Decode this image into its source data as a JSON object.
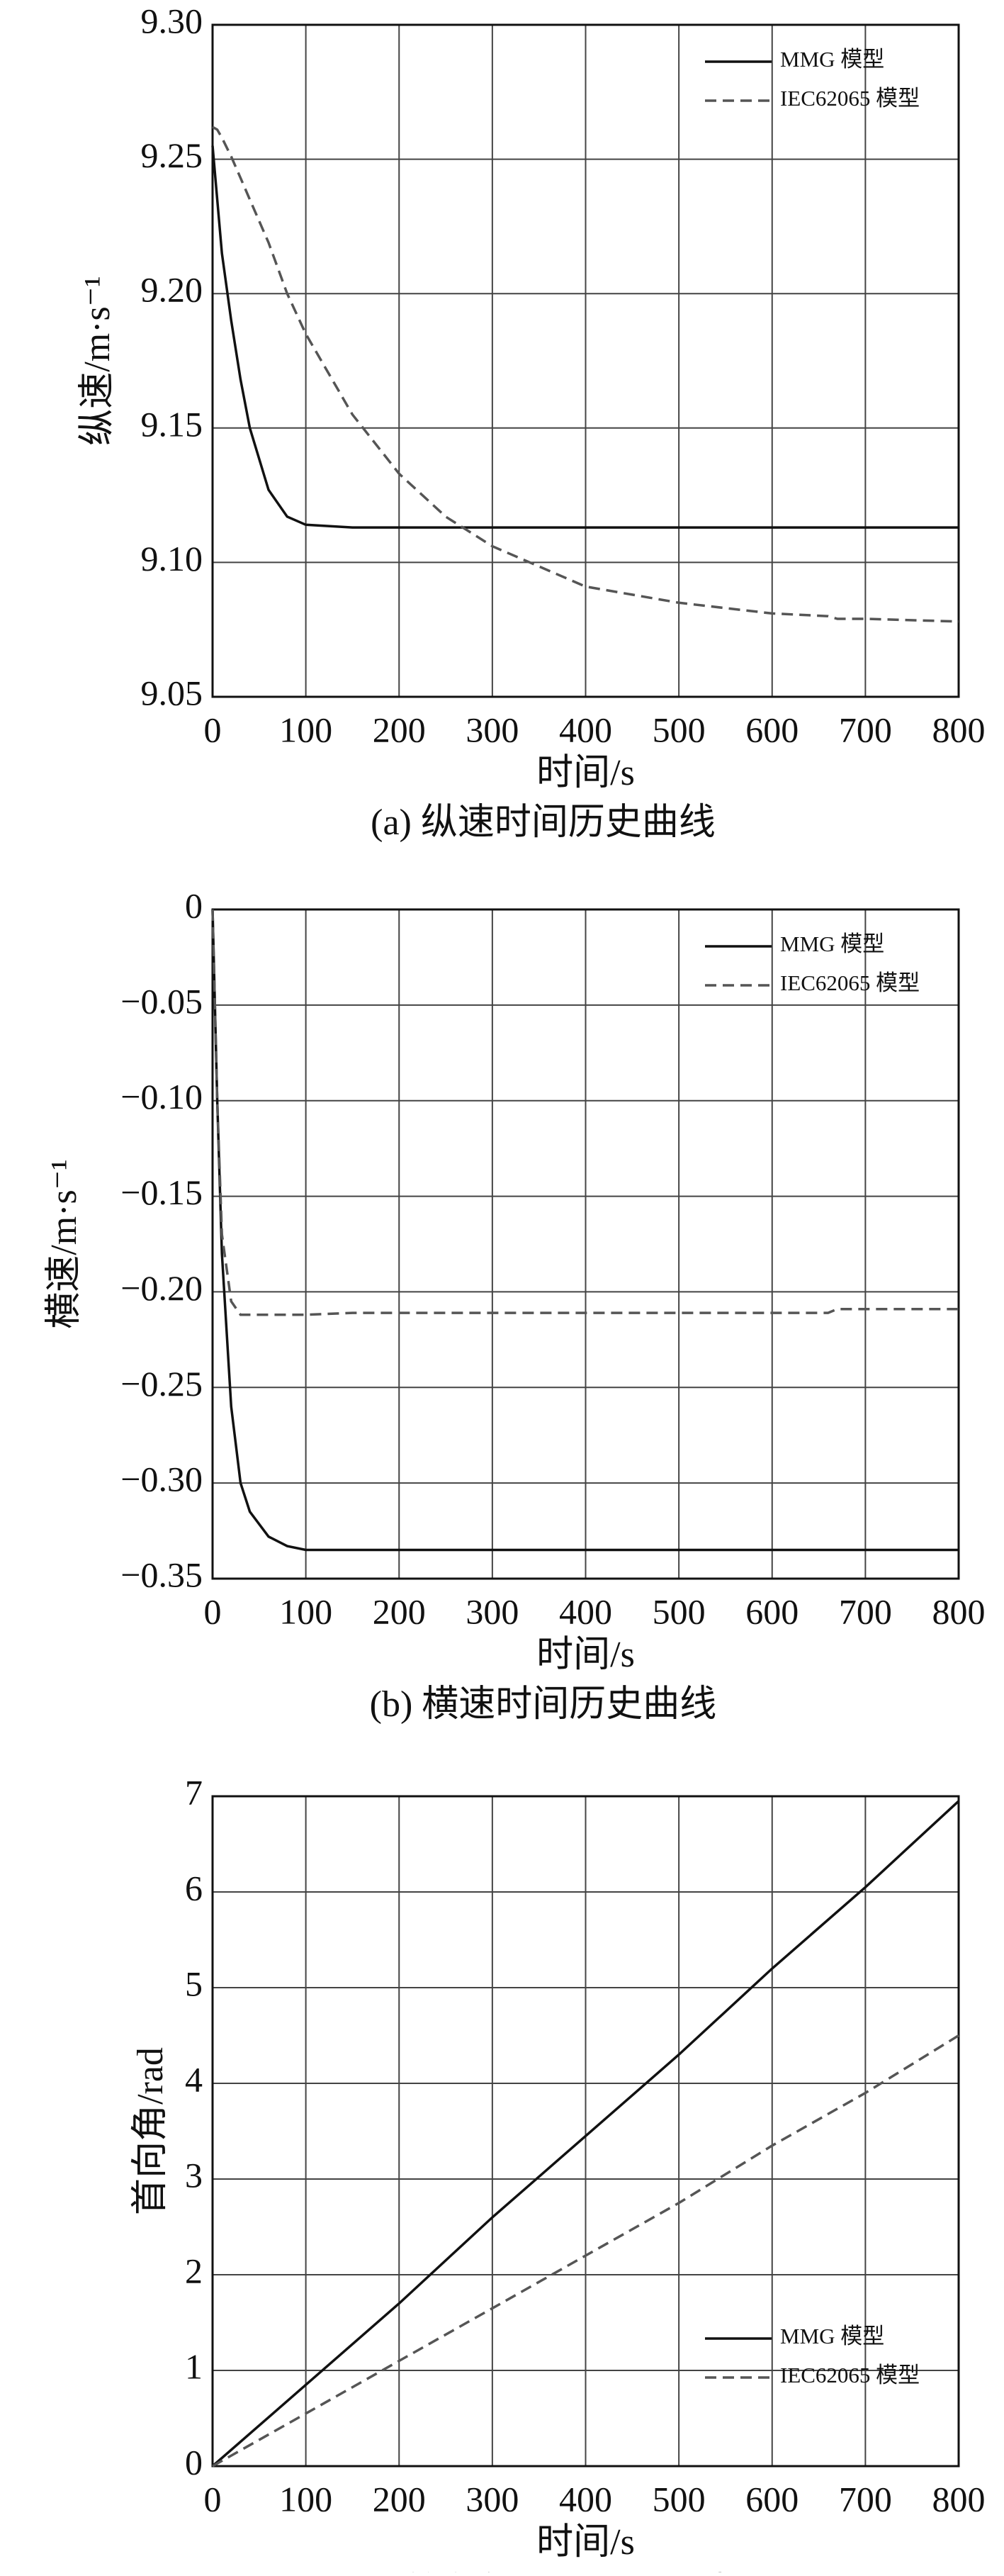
{
  "chart_data": [
    {
      "type": "line",
      "title": "(a) 纵速时间历史曲线",
      "xlabel": "时间/s",
      "ylabel": "纵速/m·s⁻¹",
      "x": [
        0,
        5,
        10,
        20,
        30,
        40,
        60,
        80,
        100,
        150,
        200,
        250,
        300,
        400,
        500,
        600,
        660,
        670,
        700,
        800
      ],
      "series": [
        {
          "name": "MMG 模型",
          "color": "#111111",
          "style": "solid",
          "values": [
            9.255,
            9.235,
            9.215,
            9.19,
            9.168,
            9.15,
            9.127,
            9.117,
            9.114,
            9.113,
            9.113,
            9.113,
            9.113,
            9.113,
            9.113,
            9.113,
            9.113,
            9.113,
            9.113,
            9.113
          ]
        },
        {
          "name": "IEC62065 模型",
          "color": "#555555",
          "style": "dashed",
          "values": [
            9.262,
            9.261,
            9.258,
            9.251,
            9.243,
            9.235,
            9.219,
            9.2,
            9.185,
            9.155,
            9.133,
            9.117,
            9.106,
            9.091,
            9.085,
            9.081,
            9.08,
            9.079,
            9.079,
            9.078
          ]
        }
      ],
      "xlim": [
        0,
        800
      ],
      "ylim": [
        9.05,
        9.3
      ],
      "xticks": [
        0,
        100,
        200,
        300,
        400,
        500,
        600,
        700,
        800
      ],
      "yticks": [
        9.05,
        {
          "value": 9.1,
          "label": "9.10"
        },
        9.15,
        {
          "value": 9.2,
          "label": "9.20"
        },
        9.25,
        {
          "value": 9.3,
          "label": "9.30"
        }
      ],
      "grid": true,
      "legend": "upper right"
    },
    {
      "type": "line",
      "title": "(b) 横速时间历史曲线",
      "xlabel": "时间/s",
      "ylabel": "横速/m·s⁻¹",
      "x": [
        0,
        5,
        10,
        20,
        30,
        40,
        60,
        80,
        100,
        150,
        200,
        250,
        300,
        400,
        500,
        600,
        660,
        670,
        700,
        800
      ],
      "series": [
        {
          "name": "MMG 模型",
          "color": "#111111",
          "style": "solid",
          "values": [
            0,
            -0.1,
            -0.18,
            -0.26,
            -0.3,
            -0.315,
            -0.328,
            -0.333,
            -0.335,
            -0.335,
            -0.335,
            -0.335,
            -0.335,
            -0.335,
            -0.335,
            -0.335,
            -0.335,
            -0.335,
            -0.335,
            -0.335
          ]
        },
        {
          "name": "IEC62065 模型",
          "color": "#555555",
          "style": "dashed",
          "values": [
            0,
            -0.1,
            -0.17,
            -0.205,
            -0.212,
            -0.212,
            -0.212,
            -0.212,
            -0.212,
            -0.211,
            -0.211,
            -0.211,
            -0.211,
            -0.211,
            -0.211,
            -0.211,
            -0.211,
            -0.209,
            -0.209,
            -0.209
          ]
        }
      ],
      "xlim": [
        0,
        800
      ],
      "ylim": [
        -0.35,
        0
      ],
      "xticks": [
        0,
        100,
        200,
        300,
        400,
        500,
        600,
        700,
        800
      ],
      "yticks": [
        {
          "value": -0.35,
          "label": "−0.35"
        },
        {
          "value": -0.3,
          "label": "−0.30"
        },
        {
          "value": -0.25,
          "label": "−0.25"
        },
        {
          "value": -0.2,
          "label": "−0.20"
        },
        {
          "value": -0.15,
          "label": "−0.15"
        },
        {
          "value": -0.1,
          "label": "−0.10"
        },
        {
          "value": -0.05,
          "label": "−0.05"
        },
        0
      ],
      "grid": true,
      "legend": "upper right"
    },
    {
      "type": "line",
      "title": "(c) 首向角时间历史曲线",
      "xlabel": "时间/s",
      "ylabel": "首向角/rad",
      "x": [
        0,
        100,
        200,
        300,
        400,
        500,
        600,
        700,
        800
      ],
      "series": [
        {
          "name": "MMG 模型",
          "color": "#111111",
          "style": "solid",
          "values": [
            0,
            0.85,
            1.7,
            2.6,
            3.45,
            4.3,
            5.2,
            6.05,
            6.95
          ]
        },
        {
          "name": "IEC62065 模型",
          "color": "#555555",
          "style": "dashed",
          "values": [
            0,
            0.55,
            1.1,
            1.65,
            2.2,
            2.75,
            3.35,
            3.9,
            4.5
          ]
        }
      ],
      "xlim": [
        0,
        800
      ],
      "ylim": [
        0,
        7
      ],
      "xticks": [
        0,
        100,
        200,
        300,
        400,
        500,
        600,
        700,
        800
      ],
      "yticks": [
        0,
        1,
        2,
        3,
        4,
        5,
        6,
        7
      ],
      "grid": true,
      "legend": "lower right"
    }
  ]
}
